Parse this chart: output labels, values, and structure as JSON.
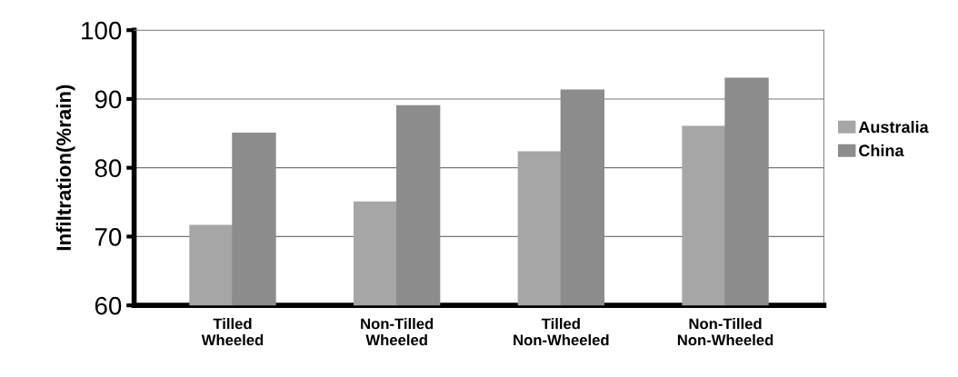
{
  "chart_data": {
    "type": "bar",
    "ylabel": "Infiltration(%rain)",
    "categories": [
      "Tilled\nWheeled",
      "Non-Tilled\nWheeled",
      "Tilled\nNon-Wheeled",
      "Non-Tilled\nNon-Wheeled"
    ],
    "series": [
      {
        "name": "Australia",
        "color": "#a6a6a6",
        "values": [
          71.6,
          75,
          82.3,
          86
        ]
      },
      {
        "name": "China",
        "color": "#8c8c8c",
        "values": [
          85,
          89,
          91.3,
          93
        ]
      }
    ],
    "ylim": [
      60,
      100
    ],
    "yticks": [
      60,
      70,
      80,
      90,
      100
    ],
    "grid": "y",
    "legend": "right"
  }
}
